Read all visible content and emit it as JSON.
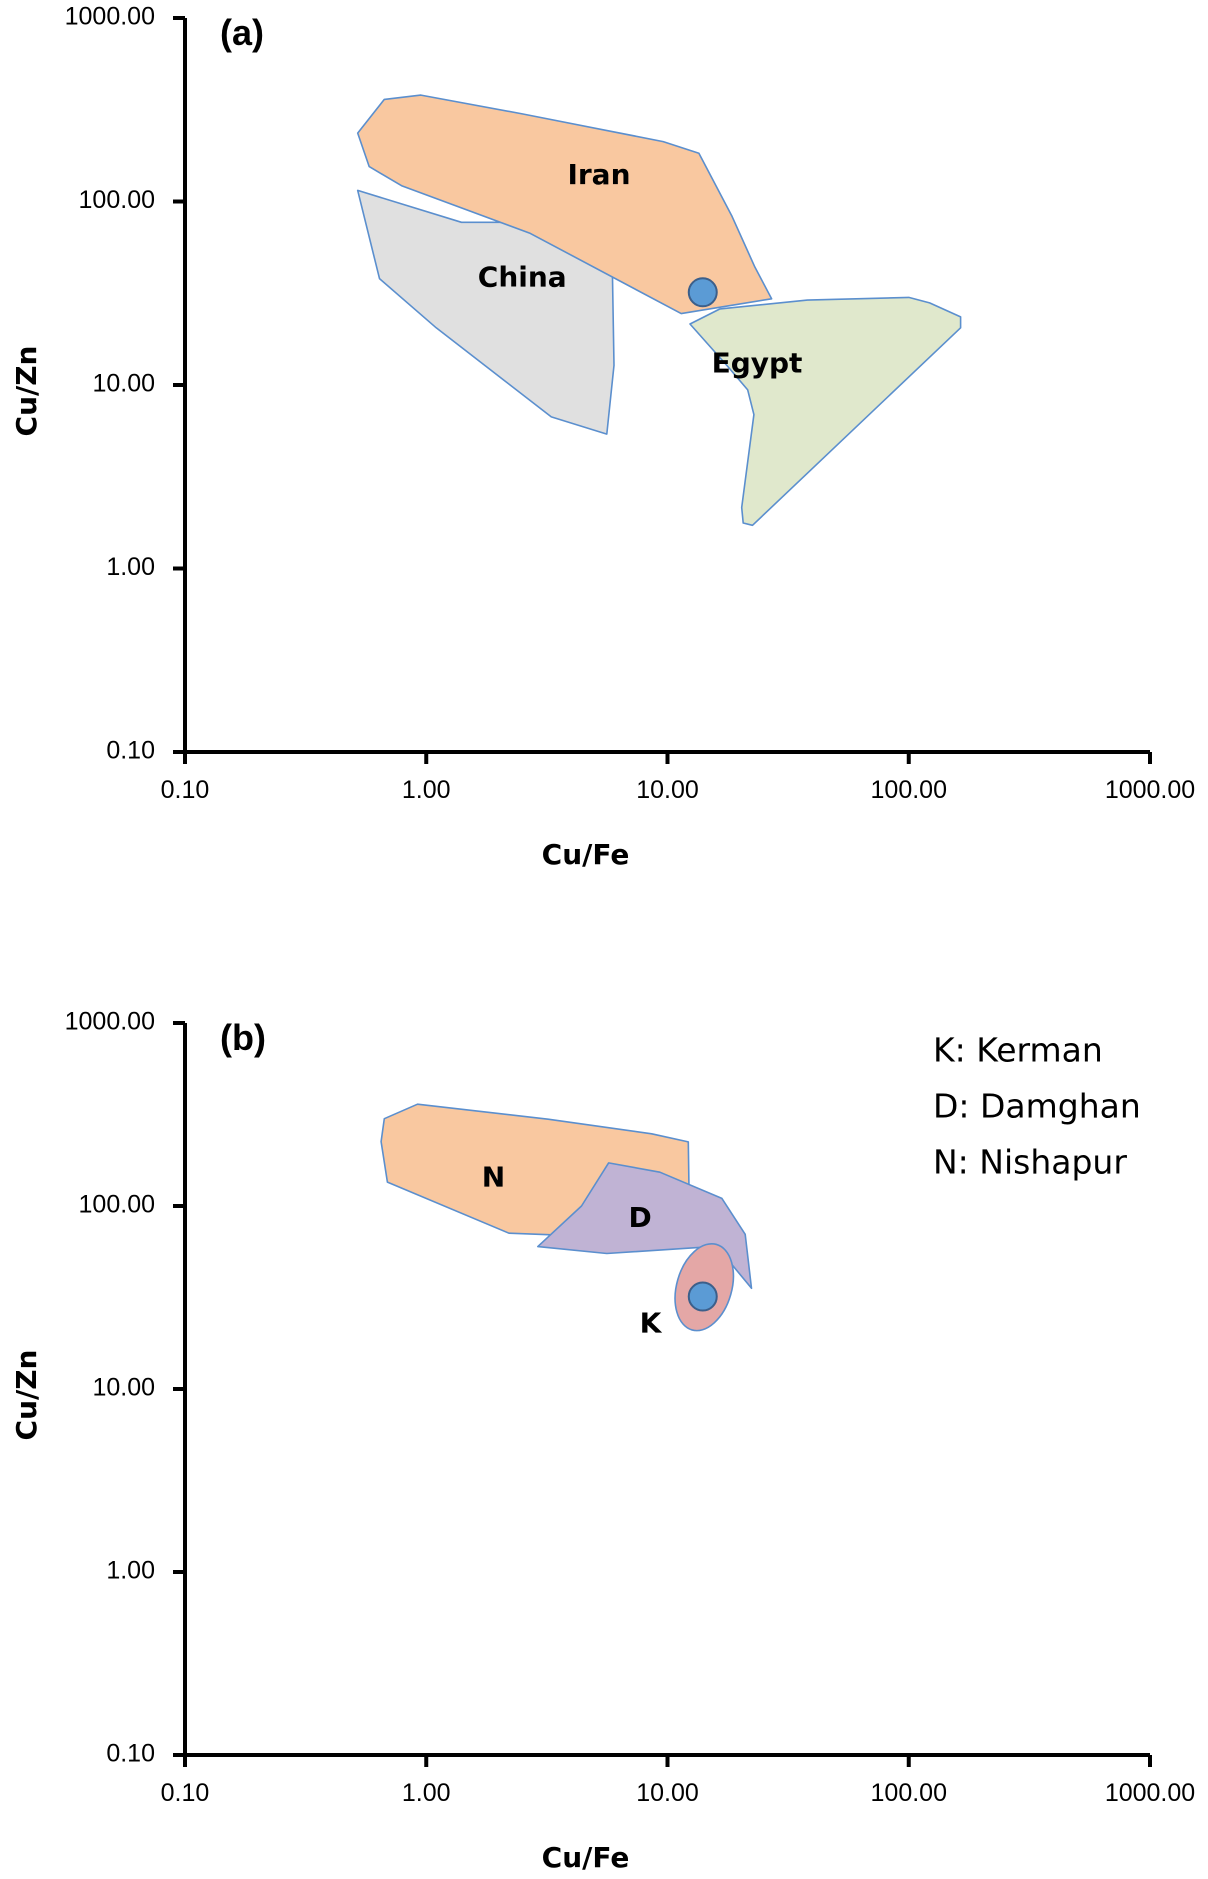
{
  "chart_data": [
    {
      "type": "scatter",
      "panel_label": "(a)",
      "xlabel": "Cu/Fe",
      "ylabel": "Cu/Zn",
      "xscale": "log",
      "yscale": "log",
      "xlim": [
        0.1,
        1000
      ],
      "ylim": [
        0.1,
        1000
      ],
      "x_ticks": [
        "0.10",
        "1.00",
        "10.00",
        "100.00",
        "1000.00"
      ],
      "y_ticks": [
        "0.10",
        "1.00",
        "10.00",
        "100.00",
        "1000.00"
      ],
      "regions": [
        {
          "name": "China",
          "label": "China",
          "fill": "#e0e0e0",
          "label_at": [
            2.5,
            38
          ],
          "points": [
            [
              0.52,
              115
            ],
            [
              1.4,
              77
            ],
            [
              2.6,
              77
            ],
            [
              4.2,
              59
            ],
            [
              5.9,
              48
            ],
            [
              6.0,
              12.8
            ],
            [
              5.6,
              5.4
            ],
            [
              3.3,
              6.7
            ],
            [
              1.1,
              20.5
            ],
            [
              0.64,
              38
            ]
          ]
        },
        {
          "name": "Iran",
          "label": "Iran",
          "fill": "#f9c8a0",
          "label_at": [
            5.2,
            138
          ],
          "points": [
            [
              0.52,
              236
            ],
            [
              0.67,
              360
            ],
            [
              0.95,
              380
            ],
            [
              2.5,
              300
            ],
            [
              9.6,
              212
            ],
            [
              13.5,
              183
            ],
            [
              18.5,
              83
            ],
            [
              23.0,
              44
            ],
            [
              27.0,
              29.5
            ],
            [
              11.4,
              24.5
            ],
            [
              2.7,
              67
            ],
            [
              0.79,
              122
            ],
            [
              0.58,
              155
            ]
          ]
        },
        {
          "name": "Egypt",
          "label": "Egypt",
          "fill": "#e0e8cc",
          "label_at": [
            23.5,
            12.9
          ],
          "points": [
            [
              12.4,
              21.5
            ],
            [
              16.5,
              26
            ],
            [
              38,
              29
            ],
            [
              100,
              30
            ],
            [
              122,
              28
            ],
            [
              164,
              23.5
            ],
            [
              164,
              20.5
            ],
            [
              22.5,
              1.72
            ],
            [
              20.6,
              1.77
            ],
            [
              20.3,
              2.15
            ],
            [
              22.8,
              6.9
            ],
            [
              21.5,
              9.4
            ],
            [
              17.8,
              12.6
            ]
          ]
        }
      ],
      "sample_point": {
        "x": 14.0,
        "y": 32.0,
        "color": "#5b9bd5"
      }
    },
    {
      "type": "scatter",
      "panel_label": "(b)",
      "xlabel": "Cu/Fe",
      "ylabel": "Cu/Zn",
      "xscale": "log",
      "yscale": "log",
      "xlim": [
        0.1,
        1000
      ],
      "ylim": [
        0.1,
        1000
      ],
      "x_ticks": [
        "0.10",
        "1.00",
        "10.00",
        "100.00",
        "1000.00"
      ],
      "y_ticks": [
        "0.10",
        "1.00",
        "10.00",
        "100.00",
        "1000.00"
      ],
      "legend": [
        "K: Kerman",
        "D: Damghan",
        "N: Nishapur"
      ],
      "regions": [
        {
          "name": "N",
          "label": "N",
          "fill": "#f9c8a0",
          "label_at": [
            1.9,
            141
          ],
          "points": [
            [
              0.67,
              300
            ],
            [
              0.92,
              360
            ],
            [
              3.2,
              298
            ],
            [
              8.6,
              248
            ],
            [
              12.2,
              224
            ],
            [
              12.3,
              105
            ],
            [
              5.3,
              68
            ],
            [
              2.2,
              71
            ],
            [
              0.69,
              135
            ],
            [
              0.65,
              225
            ]
          ]
        },
        {
          "name": "D",
          "label": "D",
          "fill": "#c0b3d4",
          "label_at": [
            7.7,
            85
          ],
          "points": [
            [
              2.9,
              60
            ],
            [
              4.4,
              100
            ],
            [
              5.7,
              172
            ],
            [
              9.3,
              153
            ],
            [
              16.8,
              110
            ],
            [
              21.0,
              70
            ],
            [
              22.3,
              35.5
            ],
            [
              18.1,
              49.5
            ],
            [
              15.4,
              60
            ],
            [
              5.6,
              55
            ]
          ]
        },
        {
          "name": "K",
          "label": "K",
          "fill": "#e4a7a6",
          "label_at": [
            8.5,
            22.5
          ],
          "ellipse": {
            "cx": 14.2,
            "cy": 36.0,
            "rx_log": 0.114,
            "ry_log": 0.243,
            "rotate": 16
          }
        }
      ],
      "sample_point": {
        "x": 14.0,
        "y": 32.0,
        "color": "#5b9bd5"
      }
    }
  ]
}
